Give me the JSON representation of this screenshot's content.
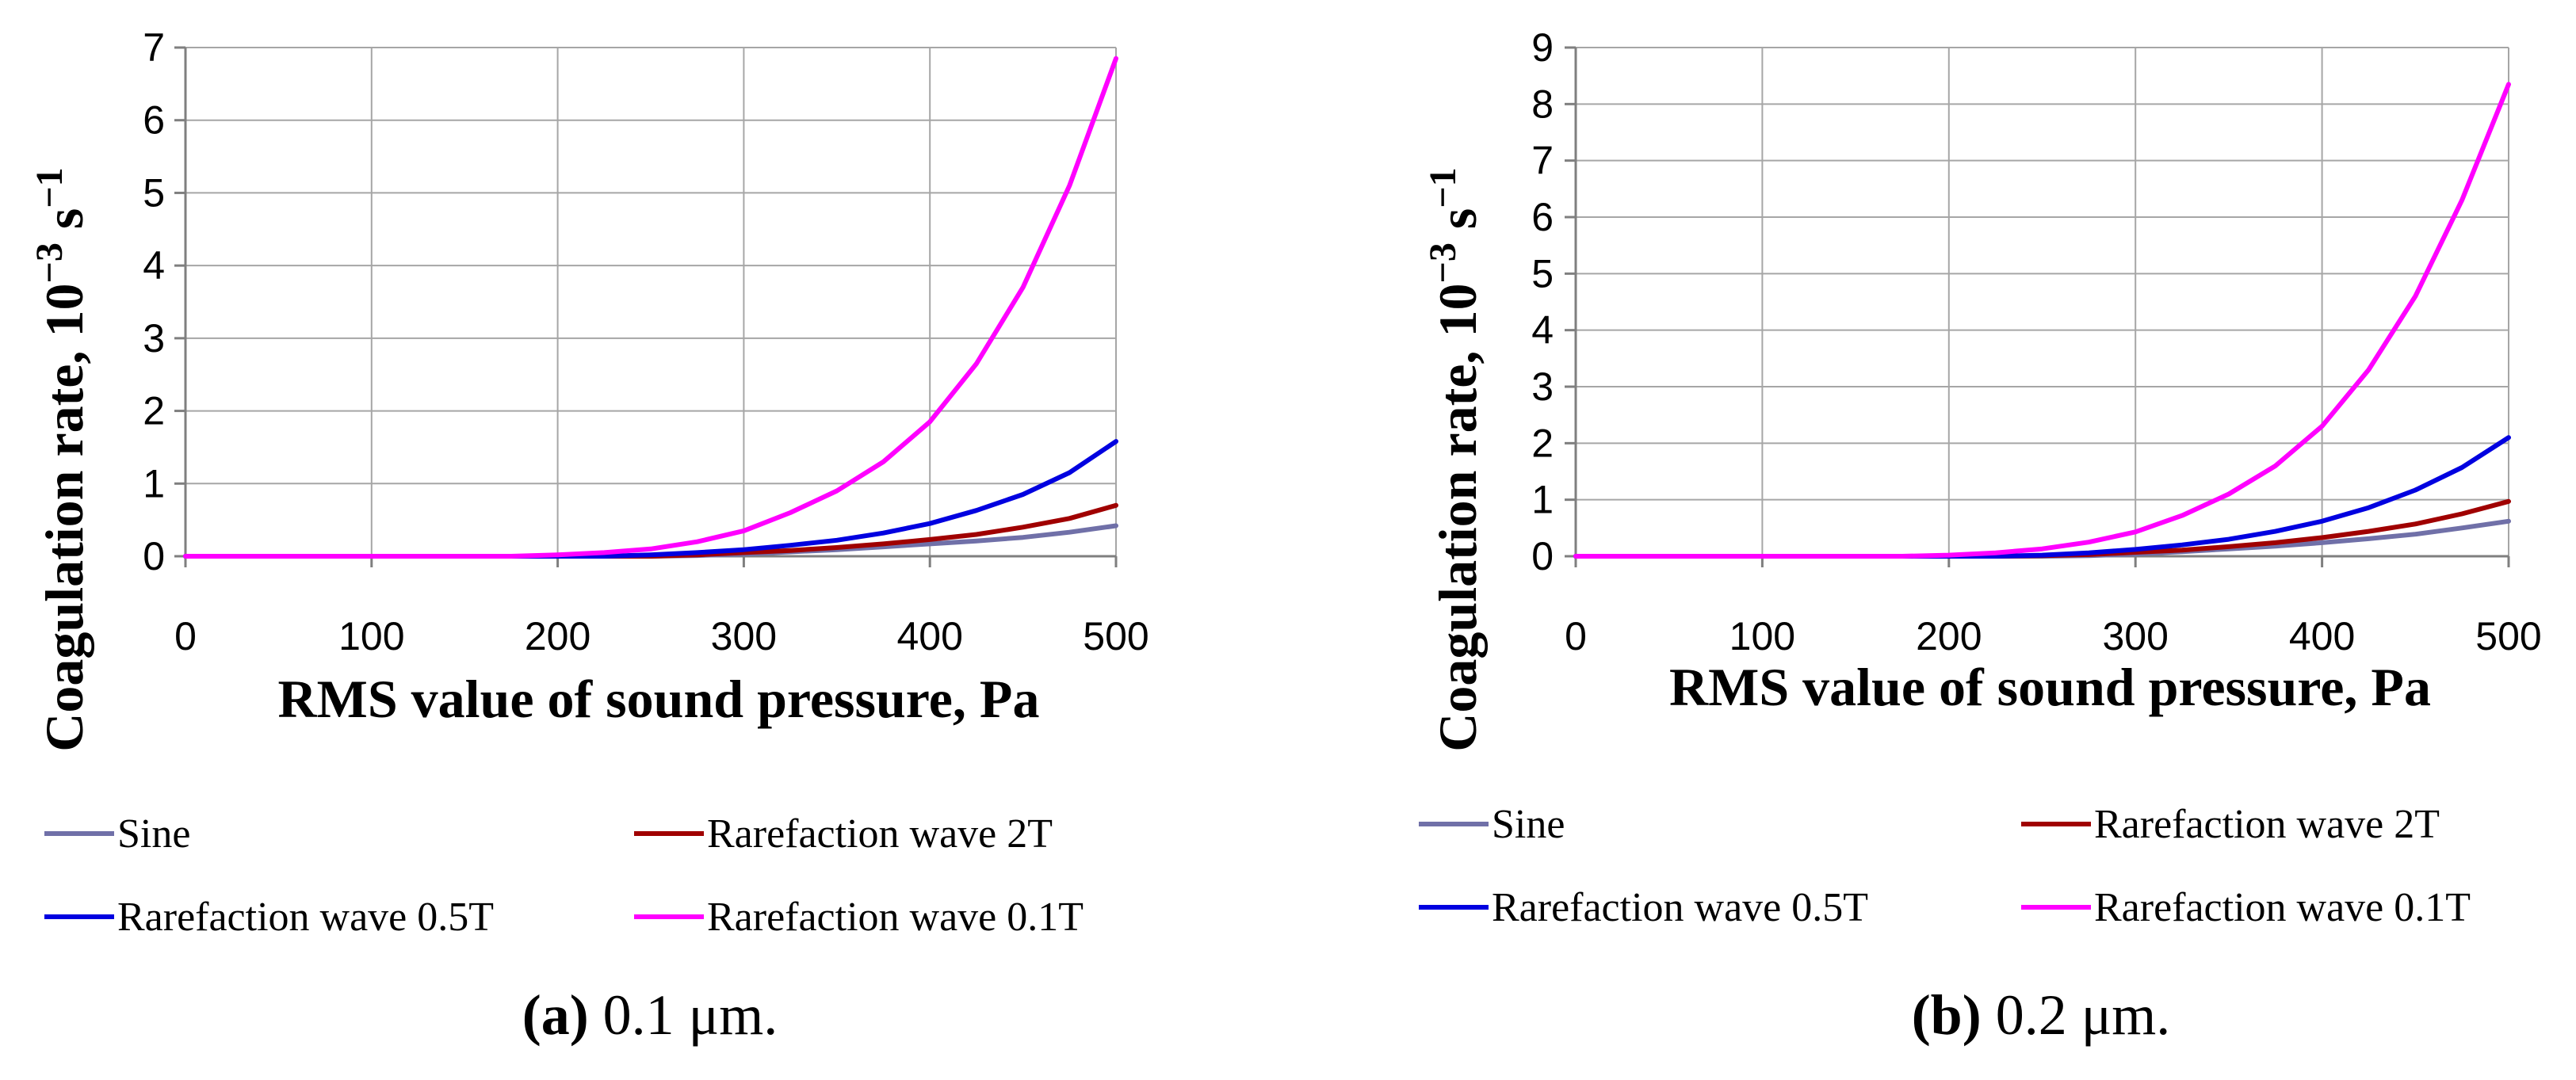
{
  "chart_data": [
    {
      "type": "line",
      "xlabel": "RMS value of sound pressure, Pa",
      "ylabel_main": "Coagulation rate, 10",
      "ylabel_sup1": "−3",
      "ylabel_mid": " s",
      "ylabel_sup2": "−1",
      "xlim": [
        0,
        500
      ],
      "ylim": [
        0,
        7
      ],
      "xticks": [
        0,
        100,
        200,
        300,
        400,
        500
      ],
      "yticks": [
        0,
        1,
        2,
        3,
        4,
        5,
        6,
        7
      ],
      "grid": true,
      "legend_position": "bottom",
      "caption_letter": "(a)",
      "caption_text": " 0.1 μm.",
      "x": [
        0,
        25,
        50,
        75,
        100,
        125,
        150,
        175,
        200,
        225,
        250,
        275,
        300,
        325,
        350,
        375,
        400,
        425,
        450,
        475,
        500
      ],
      "series": [
        {
          "name": "Sine",
          "color": "#7070a8",
          "values": [
            0,
            0,
            0,
            0,
            0,
            0,
            0,
            0,
            0,
            0,
            0,
            0.01,
            0.03,
            0.06,
            0.09,
            0.13,
            0.17,
            0.21,
            0.26,
            0.33,
            0.42
          ]
        },
        {
          "name": "Rarefaction wave 2T",
          "color": "#a00000",
          "values": [
            0,
            0,
            0,
            0,
            0,
            0,
            0,
            0,
            0,
            0,
            0,
            0.02,
            0.05,
            0.08,
            0.12,
            0.17,
            0.23,
            0.3,
            0.4,
            0.52,
            0.7
          ]
        },
        {
          "name": "Rarefaction wave 0.5T",
          "color": "#0000e0",
          "values": [
            0,
            0,
            0,
            0,
            0,
            0,
            0,
            0,
            0,
            0,
            0.02,
            0.05,
            0.09,
            0.15,
            0.22,
            0.32,
            0.45,
            0.63,
            0.85,
            1.15,
            1.58
          ]
        },
        {
          "name": "Rarefaction wave 0.1T",
          "color": "#ff00ff",
          "values": [
            0,
            0,
            0,
            0,
            0,
            0,
            0,
            0,
            0.02,
            0.05,
            0.1,
            0.2,
            0.35,
            0.6,
            0.9,
            1.3,
            1.85,
            2.65,
            3.7,
            5.1,
            6.85
          ]
        }
      ]
    },
    {
      "type": "line",
      "xlabel": "RMS value of sound pressure, Pa",
      "ylabel_main": "Coagulation rate, 10",
      "ylabel_sup1": "−3",
      "ylabel_mid": " s",
      "ylabel_sup2": "−1",
      "xlim": [
        0,
        500
      ],
      "ylim": [
        0,
        9
      ],
      "xticks": [
        0,
        100,
        200,
        300,
        400,
        500
      ],
      "yticks": [
        0,
        1,
        2,
        3,
        4,
        5,
        6,
        7,
        8,
        9
      ],
      "grid": true,
      "legend_position": "bottom",
      "caption_letter": "(b)",
      "caption_text": " 0.2 μm.",
      "x": [
        0,
        25,
        50,
        75,
        100,
        125,
        150,
        175,
        200,
        225,
        250,
        275,
        300,
        325,
        350,
        375,
        400,
        425,
        450,
        475,
        500
      ],
      "series": [
        {
          "name": "Sine",
          "color": "#7070a8",
          "values": [
            0,
            0,
            0,
            0,
            0,
            0,
            0,
            0,
            0,
            0,
            0,
            0.01,
            0.04,
            0.08,
            0.13,
            0.18,
            0.24,
            0.31,
            0.39,
            0.5,
            0.62
          ]
        },
        {
          "name": "Rarefaction wave 2T",
          "color": "#a00000",
          "values": [
            0,
            0,
            0,
            0,
            0,
            0,
            0,
            0,
            0,
            0,
            0.01,
            0.03,
            0.07,
            0.11,
            0.17,
            0.24,
            0.33,
            0.44,
            0.57,
            0.75,
            0.97
          ]
        },
        {
          "name": "Rarefaction wave 0.5T",
          "color": "#0000e0",
          "values": [
            0,
            0,
            0,
            0,
            0,
            0,
            0,
            0,
            0,
            0,
            0.02,
            0.06,
            0.12,
            0.2,
            0.3,
            0.44,
            0.62,
            0.86,
            1.17,
            1.57,
            2.1
          ]
        },
        {
          "name": "Rarefaction wave 0.1T",
          "color": "#ff00ff",
          "values": [
            0,
            0,
            0,
            0,
            0,
            0,
            0,
            0,
            0.02,
            0.06,
            0.13,
            0.25,
            0.43,
            0.72,
            1.1,
            1.6,
            2.3,
            3.3,
            4.6,
            6.3,
            8.35
          ]
        }
      ]
    }
  ]
}
